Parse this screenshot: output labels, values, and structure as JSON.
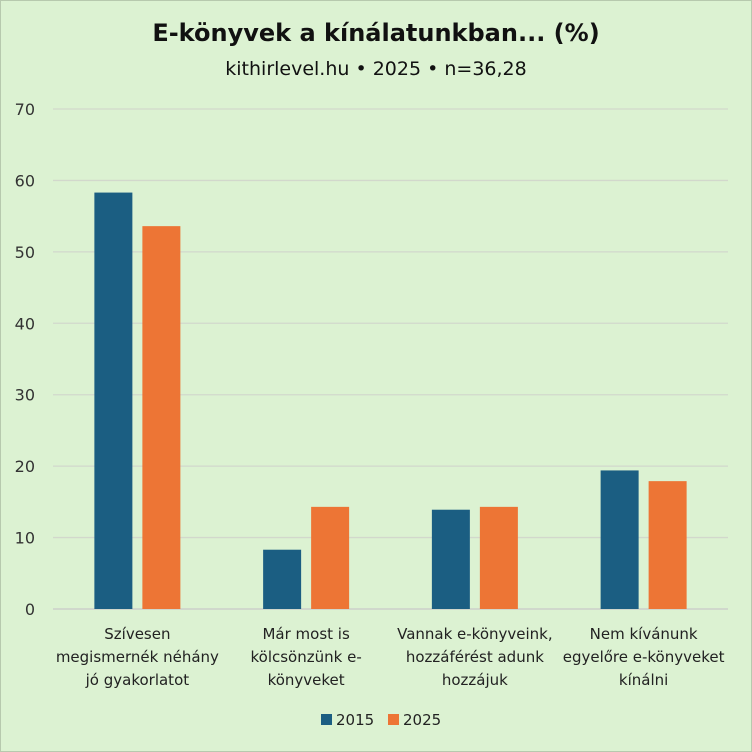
{
  "chart_data": {
    "type": "bar",
    "title": "E-könyvek a kínálatunkban... (%)",
    "subtitle": "kithirlevel.hu • 2025 •  n=36,28",
    "categories": [
      [
        "Szívesen",
        "megismernék néhány",
        "jó gyakorlatot"
      ],
      [
        "Már most is",
        "kölcsönzünk e-",
        "könyveket"
      ],
      [
        "Vannak e-könyveink,",
        "hozzáférést adunk",
        "hozzájuk"
      ],
      [
        "Nem kívánunk",
        "egyelőre e-könyveket",
        "kínálni"
      ]
    ],
    "series": [
      {
        "name": "2015",
        "color": "#1b5e82",
        "values": [
          58.3,
          8.3,
          13.9,
          19.4
        ]
      },
      {
        "name": "2025",
        "color": "#ed7535",
        "values": [
          53.6,
          14.3,
          14.3,
          17.9
        ]
      }
    ],
    "ylim": [
      0,
      70
    ],
    "yticks": [
      0,
      10,
      20,
      30,
      40,
      50,
      60,
      70
    ],
    "grid": true,
    "legend_position": "bottom"
  }
}
